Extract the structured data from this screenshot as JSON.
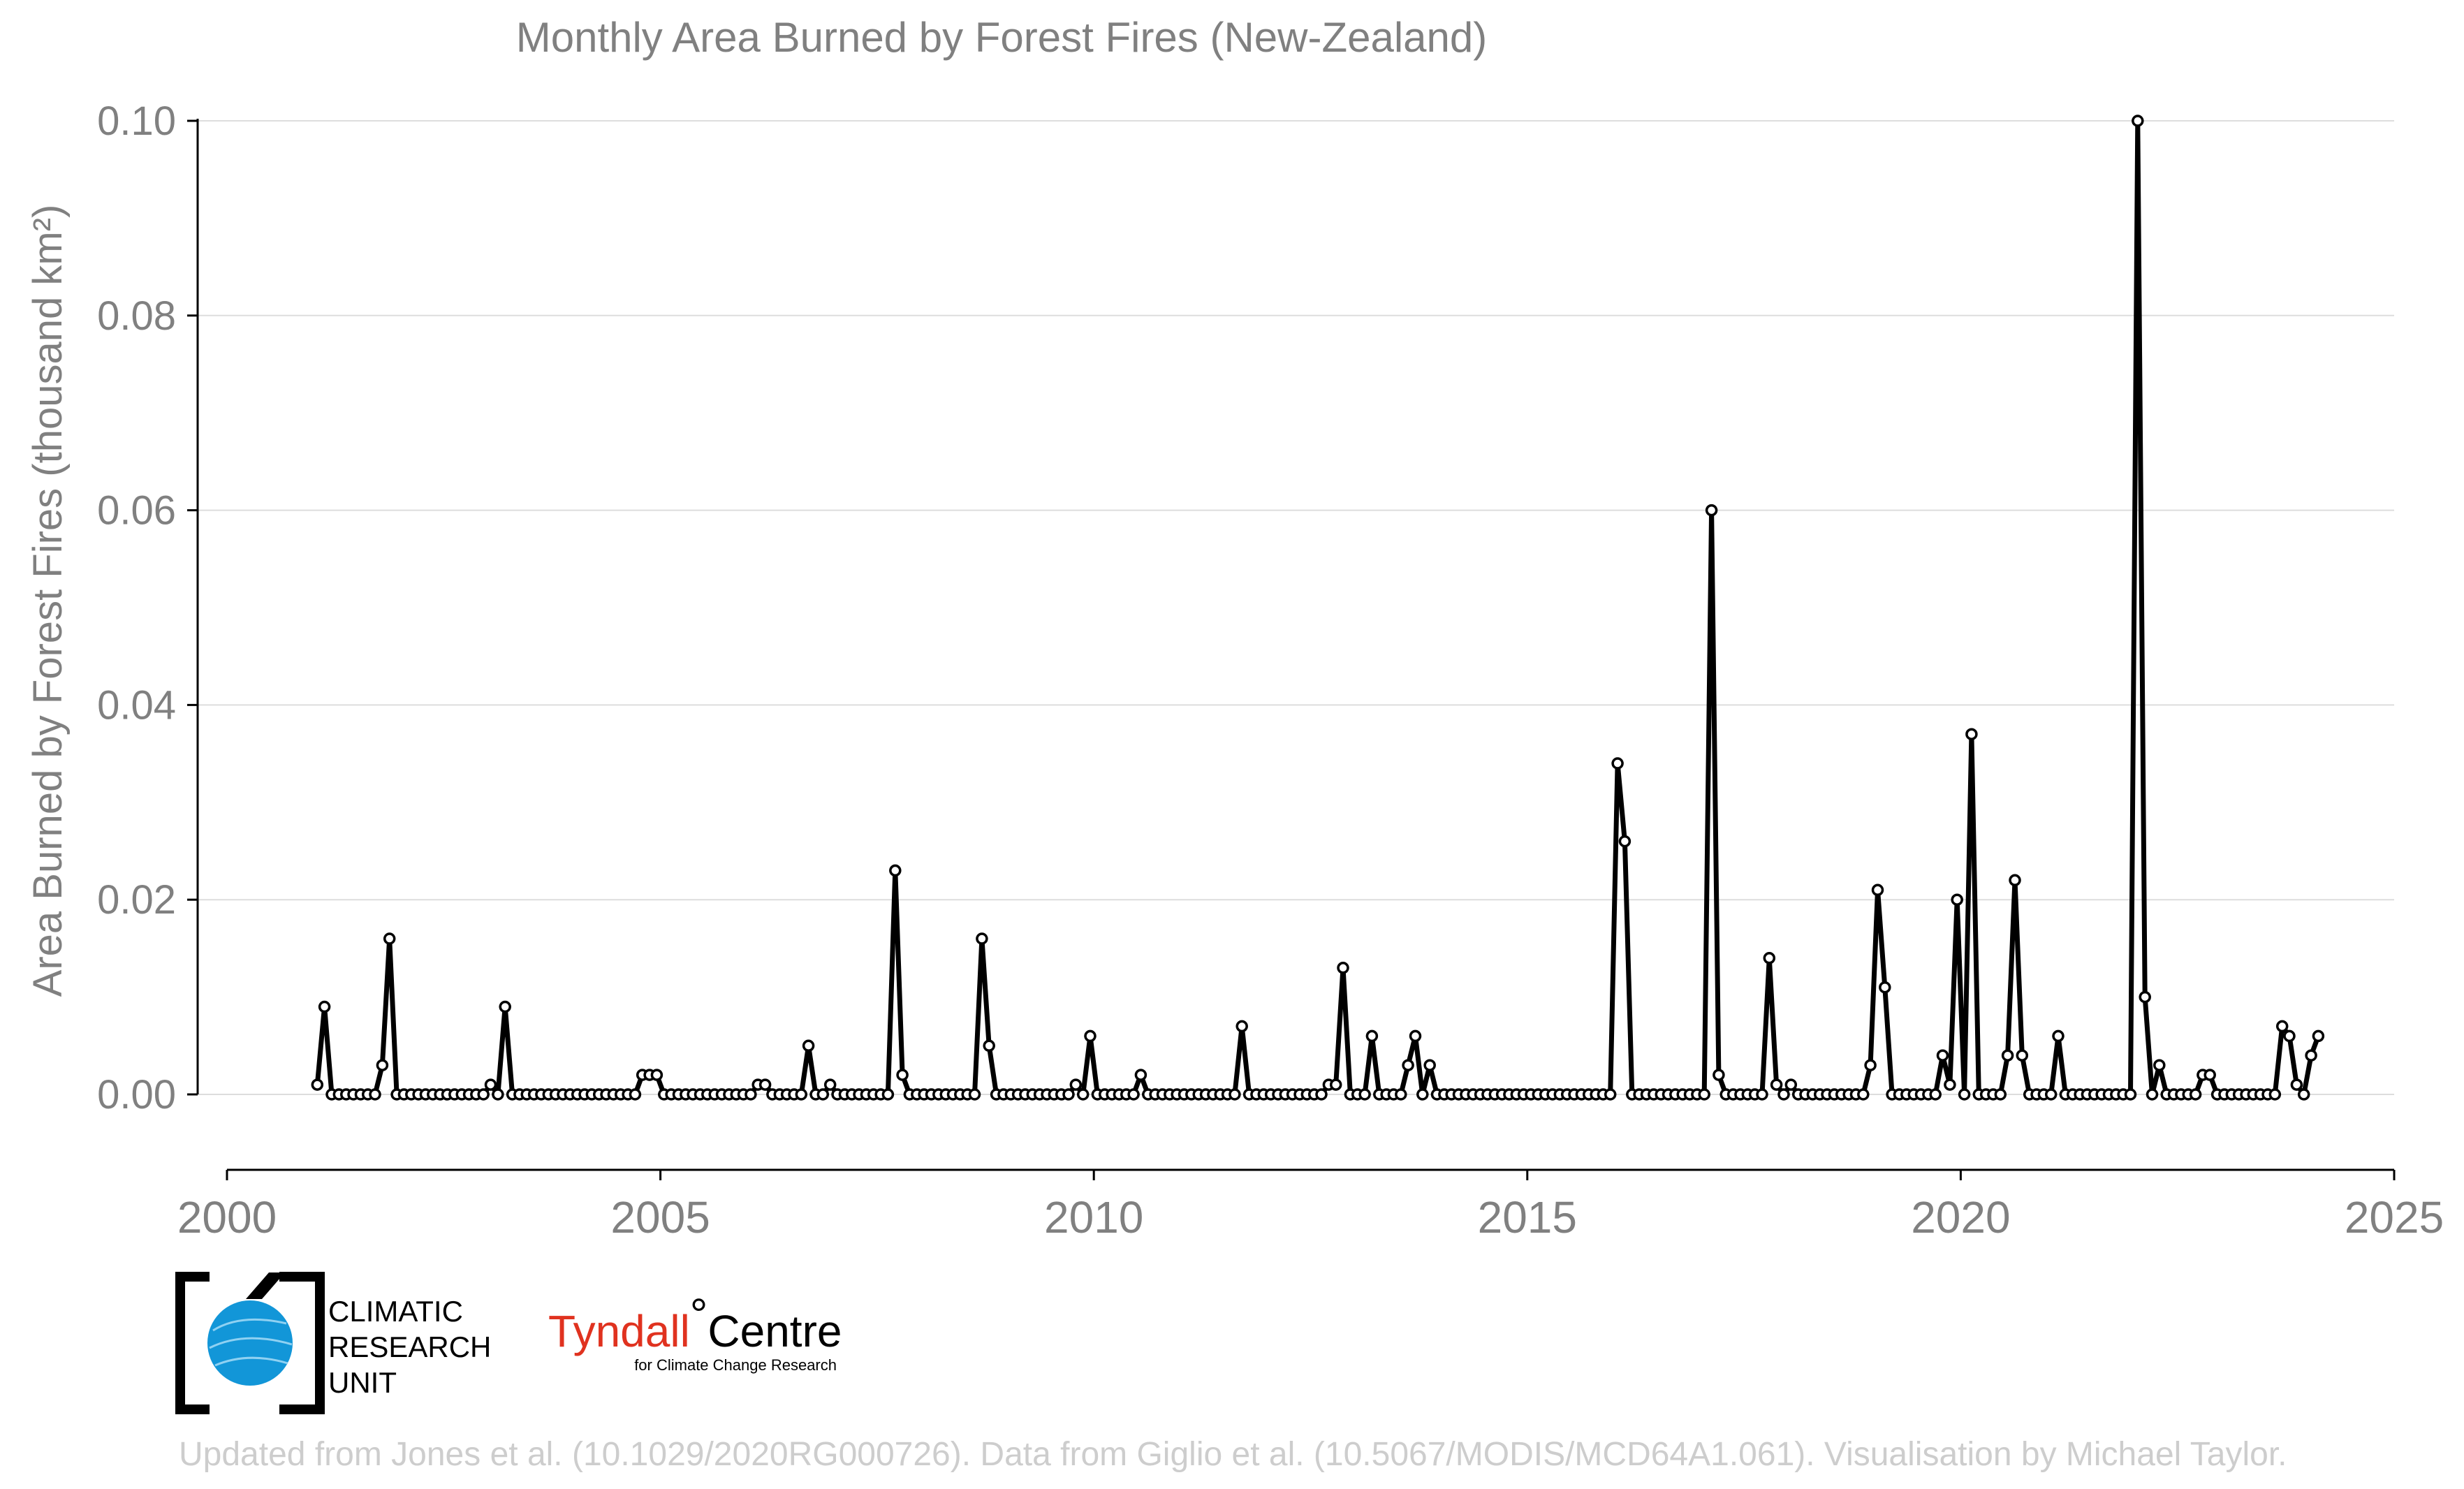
{
  "chart_data": {
    "type": "line",
    "title": "Monthly Area Burned by Forest Fires (New-Zealand)",
    "ylabel": "Area Burned by Forest Fires (thousand km²)",
    "xlabel": "",
    "xlim": [
      2000,
      2025
    ],
    "ylim": [
      -0.008,
      0.1
    ],
    "x_ticks": [
      "2000",
      "2005",
      "2010",
      "2015",
      "2020",
      "2025"
    ],
    "y_ticks": [
      "0.00",
      "0.02",
      "0.04",
      "0.06",
      "0.08",
      "0.10"
    ],
    "grid": "horizontal",
    "start_year": 2001,
    "series": [
      {
        "color": "#000000",
        "values": [
          0.001,
          0.009,
          0,
          0,
          0,
          0,
          0,
          0,
          0,
          0.003,
          0.016,
          0,
          0,
          0,
          0,
          0,
          0,
          0,
          0,
          0,
          0,
          0,
          0,
          0,
          0.001,
          0,
          0.009,
          0,
          0,
          0,
          0,
          0,
          0,
          0,
          0,
          0,
          0,
          0,
          0,
          0,
          0,
          0,
          0,
          0,
          0,
          0.002,
          0.002,
          0.002,
          0,
          0,
          0,
          0,
          0,
          0,
          0,
          0,
          0,
          0,
          0,
          0,
          0,
          0.001,
          0.001,
          0,
          0,
          0,
          0,
          0,
          0.005,
          0,
          0,
          0.001,
          0,
          0,
          0,
          0,
          0,
          0,
          0,
          0,
          0.023,
          0.002,
          0,
          0,
          0,
          0,
          0,
          0,
          0,
          0,
          0,
          0,
          0.016,
          0.005,
          0,
          0,
          0,
          0,
          0,
          0,
          0,
          0,
          0,
          0,
          0,
          0.001,
          0,
          0.006,
          0,
          0,
          0,
          0,
          0,
          0,
          0.002,
          0,
          0,
          0,
          0,
          0,
          0,
          0,
          0,
          0,
          0,
          0,
          0,
          0,
          0.007,
          0,
          0,
          0,
          0,
          0,
          0,
          0,
          0,
          0,
          0,
          0,
          0.001,
          0.001,
          0.013,
          0,
          0,
          0,
          0.006,
          0,
          0,
          0,
          0,
          0.003,
          0.006,
          0,
          0.003,
          0,
          0,
          0,
          0,
          0,
          0,
          0,
          0,
          0,
          0,
          0,
          0,
          0,
          0,
          0,
          0,
          0,
          0,
          0,
          0,
          0,
          0,
          0,
          0,
          0,
          0.034,
          0.026,
          0,
          0,
          0,
          0,
          0,
          0,
          0,
          0,
          0,
          0,
          0,
          0.06,
          0.002,
          0,
          0,
          0,
          0,
          0,
          0,
          0.014,
          0.001,
          0,
          0.001,
          0,
          0,
          0,
          0,
          0,
          0,
          0,
          0,
          0,
          0,
          0.003,
          0.021,
          0.011,
          0,
          0,
          0,
          0,
          0,
          0,
          0,
          0.004,
          0.001,
          0.02,
          0,
          0.037,
          0,
          0,
          0,
          0,
          0.004,
          0.022,
          0.004,
          0,
          0,
          0,
          0,
          0.006,
          0,
          0,
          0,
          0,
          0,
          0,
          0,
          0,
          0,
          0,
          0.1,
          0.01,
          0,
          0.003,
          0,
          0,
          0,
          0,
          0,
          0.002,
          0.002,
          0,
          0,
          0,
          0,
          0,
          0,
          0,
          0,
          0,
          0.007,
          0.006,
          0.001,
          0,
          0.004,
          0.006
        ]
      }
    ]
  },
  "footer": {
    "cru_lines": [
      "CLIMATIC",
      "RESEARCH",
      "UNIT"
    ],
    "tyndall_red": "Tyndall",
    "tyndall_degree": "°",
    "tyndall_black": "Centre",
    "tyndall_sub": "for Climate Change Research",
    "credit": "Updated from Jones et al. (10.1029/2020RG000726). Data from Giglio et al. (10.5067/MODIS/MCD64A1.061). Visualisation by Michael Taylor."
  }
}
